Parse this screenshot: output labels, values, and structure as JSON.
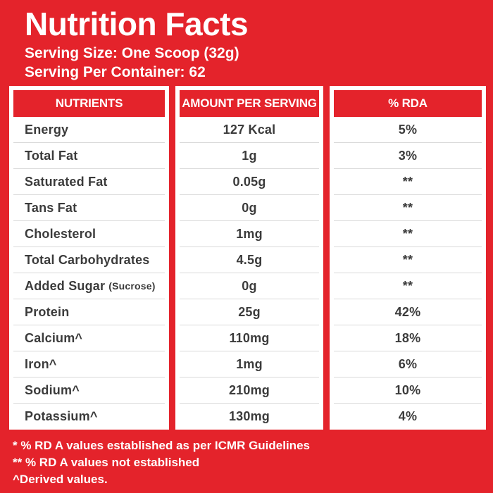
{
  "header": {
    "title": "Nutrition Facts",
    "serving_size": "Serving Size: One Scoop (32g)",
    "serving_per_container": "Serving Per Container: 62"
  },
  "table": {
    "columns": [
      "NUTRIENTS",
      "AMOUNT PER SERVING",
      "% RDA"
    ],
    "rows": [
      {
        "nutrient": "Energy",
        "amount": "127 Kcal",
        "rda": "5%"
      },
      {
        "nutrient": "Total Fat",
        "amount": "1g",
        "rda": "3%"
      },
      {
        "nutrient": "Saturated Fat",
        "amount": "0.05g",
        "rda": "**"
      },
      {
        "nutrient": "Tans Fat",
        "amount": "0g",
        "rda": "**"
      },
      {
        "nutrient": "Cholesterol",
        "amount": "1mg",
        "rda": "**"
      },
      {
        "nutrient": "Total Carbohydrates",
        "amount": "4.5g",
        "rda": "**"
      },
      {
        "nutrient": "Added Sugar",
        "nutrient_note": "(Sucrose)",
        "amount": "0g",
        "rda": "**"
      },
      {
        "nutrient": "Protein",
        "amount": "25g",
        "rda": "42%"
      },
      {
        "nutrient": "Calcium^",
        "amount": "110mg",
        "rda": "18%"
      },
      {
        "nutrient": "Iron^",
        "amount": "1mg",
        "rda": "6%"
      },
      {
        "nutrient": "Sodium^",
        "amount": "210mg",
        "rda": "10%"
      },
      {
        "nutrient": "Potassium^",
        "amount": "130mg",
        "rda": "4%"
      }
    ]
  },
  "footnotes": [
    "* % RD A values established as per ICMR Guidelines",
    "** % RD A values not established",
    "^Derived values."
  ],
  "colors": {
    "background_red": "#E4232B",
    "panel_white": "#FFFFFF",
    "header_text": "#FFFFFF",
    "row_text": "#3B3B3B",
    "divider": "#D9D9D9"
  }
}
